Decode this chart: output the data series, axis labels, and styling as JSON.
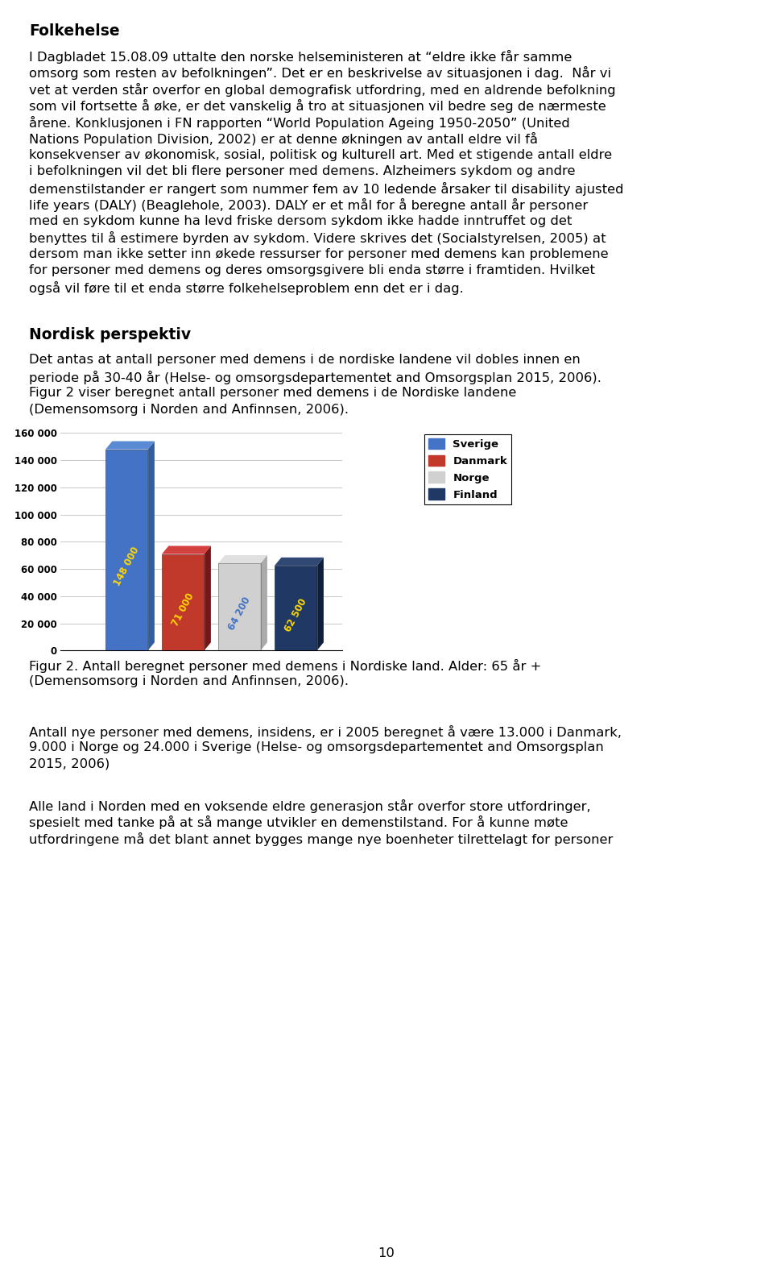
{
  "page_title": "Folkehelse",
  "para1_lines": [
    "I Dagbladet 15.08.09 uttalte den norske helseministeren at “eldre ikke får samme",
    "omsorg som resten av befolkningen”. Det er en beskrivelse av situasjonen i dag.  Når vi",
    "vet at verden står overfor en global demografisk utfordring, med en aldrende befolkning",
    "som vil fortsette å øke, er det vanskelig å tro at situasjonen vil bedre seg de nærmeste",
    "årene. Konklusjonen i FN rapporten “World Population Ageing 1950-2050” (United",
    "Nations Population Division, 2002) er at denne økningen av antall eldre vil få",
    "konsekvenser av økonomisk, sosial, politisk og kulturell art. Med et stigende antall eldre",
    "i befolkningen vil det bli flere personer med demens. Alzheimers sykdom og andre",
    "demenstilstander er rangert som nummer fem av 10 ledende årsaker til disability ajusted",
    "life years (DALY) (Beaglehole, 2003). DALY er et mål for å beregne antall år personer",
    "med en sykdom kunne ha levd friske dersom sykdom ikke hadde inntruffet og det",
    "benyttes til å estimere byrden av sykdom. Videre skrives det (Socialstyrelsen, 2005) at",
    "dersom man ikke setter inn økede ressurser for personer med demens kan problemene",
    "for personer med demens og deres omsorgsgivere bli enda større i framtiden. Hvilket",
    "også vil føre til et enda større folkehelseproblem enn det er i dag."
  ],
  "section_title": "Nordisk perspektiv",
  "para2_lines": [
    "Det antas at antall personer med demens i de nordiske landene vil dobles innen en",
    "periode på 30-40 år (Helse- og omsorgsdepartementet and Omsorgsplan 2015, 2006).",
    "Figur 2 viser beregnet antall personer med demens i de Nordiske landene",
    "(Demensomsorg i Norden and Anfinnsen, 2006)."
  ],
  "chart": {
    "values": [
      148000,
      71000,
      64200,
      62500
    ],
    "bar_colors": [
      "#4472c4",
      "#c0392b",
      "#d0d0d0",
      "#1f3864"
    ],
    "bar_edge_colors": [
      "#2e5fa3",
      "#8b0000",
      "#999999",
      "#0d1f3c"
    ],
    "side_colors": [
      "#2e5fa3",
      "#7a1515",
      "#aaaaaa",
      "#0d1f3c"
    ],
    "top_colors": [
      "#5a8ad4",
      "#d44040",
      "#e0e0e0",
      "#2f4874"
    ],
    "label_colors": [
      "#ffd700",
      "#ffd700",
      "#4472c4",
      "#ffd700"
    ],
    "labels": [
      "148 000",
      "71 000",
      "64 200",
      "62 500"
    ],
    "legend_colors": [
      "#4472c4",
      "#c0392b",
      "#d0d0d0",
      "#1f3864"
    ],
    "legend_labels": [
      "Sverige",
      "Danmark",
      "Norge",
      "Finland"
    ],
    "yticks": [
      0,
      20000,
      40000,
      60000,
      80000,
      100000,
      120000,
      140000,
      160000
    ],
    "ytick_labels": [
      "0",
      "20 000",
      "40 000",
      "60 000",
      "80 000",
      "100 000",
      "120 000",
      "140 000",
      "160 000"
    ]
  },
  "fig_caption_lines": [
    "Figur 2. Antall beregnet personer med demens i Nordiske land. Alder: 65 år +",
    "(Demensomsorg i Norden and Anfinnsen, 2006)."
  ],
  "after_para1_lines": [
    "Antall nye personer med demens, insidens, er i 2005 beregnet å være 13.000 i Danmark,",
    "9.000 i Norge og 24.000 i Sverige (Helse- og omsorgsdepartementet and Omsorgsplan",
    "2015, 2006)"
  ],
  "after_para2_lines": [
    "Alle land i Norden med en voksende eldre generasjon står overfor store utfordringer,",
    "spesielt med tanke på at så mange utvikler en demenstilstand. For å kunne møte",
    "utfordringene må det blant annet bygges mange nye boenheter tilrettelagt for personer"
  ],
  "page_number": "10"
}
